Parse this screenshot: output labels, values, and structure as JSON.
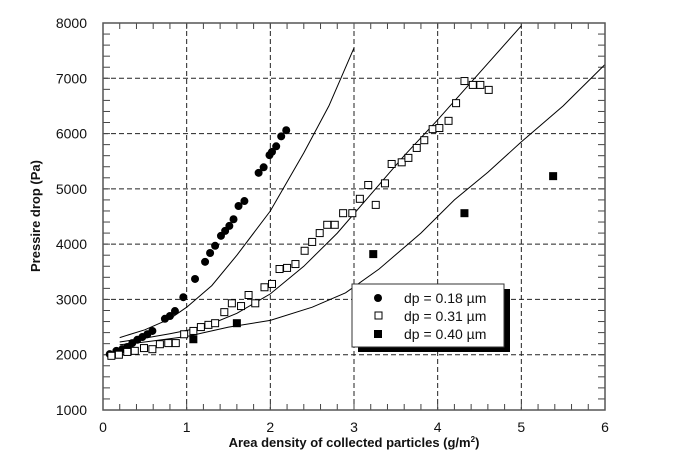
{
  "chart_data": {
    "type": "scatter",
    "title": "",
    "xlabel": "Area density of collected particles  (g/m",
    "xlabel_sup": "2",
    "xlabel_end": ")",
    "ylabel": "Pressire drop (Pa)",
    "xlim": [
      0,
      6
    ],
    "ylim": [
      1000,
      8000
    ],
    "x_ticks": [
      "0",
      "1",
      "2",
      "3",
      "4",
      "5",
      "6"
    ],
    "y_ticks": [
      "1000",
      "2000",
      "3000",
      "4000",
      "5000",
      "6000",
      "7000",
      "8000"
    ],
    "grid": true,
    "legend_position": "lower-right",
    "series": [
      {
        "name": "dp = 0.18 µm",
        "marker": "filled-circle",
        "points": [
          [
            0.08,
            2010
          ],
          [
            0.16,
            2070
          ],
          [
            0.23,
            2100
          ],
          [
            0.29,
            2140
          ],
          [
            0.35,
            2210
          ],
          [
            0.41,
            2270
          ],
          [
            0.47,
            2320
          ],
          [
            0.53,
            2370
          ],
          [
            0.59,
            2430
          ],
          [
            0.74,
            2650
          ],
          [
            0.8,
            2700
          ],
          [
            0.86,
            2790
          ],
          [
            0.96,
            3040
          ],
          [
            1.1,
            3370
          ],
          [
            1.22,
            3680
          ],
          [
            1.28,
            3840
          ],
          [
            1.34,
            3970
          ],
          [
            1.41,
            4150
          ],
          [
            1.46,
            4240
          ],
          [
            1.51,
            4330
          ],
          [
            1.56,
            4450
          ],
          [
            1.62,
            4690
          ],
          [
            1.69,
            4780
          ],
          [
            1.86,
            5290
          ],
          [
            1.92,
            5390
          ],
          [
            1.99,
            5610
          ],
          [
            2.02,
            5670
          ],
          [
            2.07,
            5770
          ],
          [
            2.13,
            5950
          ],
          [
            2.19,
            6060
          ]
        ],
        "model_curve": [
          [
            0.2,
            2310
          ],
          [
            0.5,
            2450
          ],
          [
            0.8,
            2650
          ],
          [
            1.0,
            2860
          ],
          [
            1.3,
            3250
          ],
          [
            1.6,
            3800
          ],
          [
            2.0,
            4600
          ],
          [
            2.4,
            5650
          ],
          [
            2.7,
            6500
          ],
          [
            3.0,
            7550
          ]
        ]
      },
      {
        "name": "dp = 0.31 µm",
        "marker": "open-square",
        "points": [
          [
            0.1,
            1980
          ],
          [
            0.19,
            2000
          ],
          [
            0.29,
            2050
          ],
          [
            0.38,
            2070
          ],
          [
            0.49,
            2120
          ],
          [
            0.59,
            2100
          ],
          [
            0.68,
            2190
          ],
          [
            0.78,
            2210
          ],
          [
            0.87,
            2210
          ],
          [
            0.97,
            2370
          ],
          [
            1.08,
            2430
          ],
          [
            1.17,
            2500
          ],
          [
            1.26,
            2540
          ],
          [
            1.34,
            2570
          ],
          [
            1.45,
            2770
          ],
          [
            1.54,
            2930
          ],
          [
            1.65,
            2880
          ],
          [
            1.74,
            3080
          ],
          [
            1.82,
            2930
          ],
          [
            1.93,
            3220
          ],
          [
            2.02,
            3280
          ],
          [
            2.11,
            3550
          ],
          [
            2.2,
            3570
          ],
          [
            2.3,
            3640
          ],
          [
            2.41,
            3880
          ],
          [
            2.5,
            4040
          ],
          [
            2.59,
            4200
          ],
          [
            2.68,
            4350
          ],
          [
            2.77,
            4350
          ],
          [
            2.87,
            4560
          ],
          [
            2.98,
            4560
          ],
          [
            3.07,
            4820
          ],
          [
            3.17,
            5070
          ],
          [
            3.26,
            4710
          ],
          [
            3.37,
            5100
          ],
          [
            3.45,
            5450
          ],
          [
            3.57,
            5480
          ],
          [
            3.65,
            5560
          ],
          [
            3.75,
            5740
          ],
          [
            3.84,
            5880
          ],
          [
            3.94,
            6080
          ],
          [
            4.02,
            6100
          ],
          [
            4.13,
            6230
          ],
          [
            4.22,
            6550
          ],
          [
            4.32,
            6950
          ],
          [
            4.42,
            6880
          ],
          [
            4.51,
            6880
          ],
          [
            4.61,
            6790
          ]
        ],
        "model_curve": [
          [
            0.2,
            2230
          ],
          [
            0.5,
            2300
          ],
          [
            0.8,
            2380
          ],
          [
            1.2,
            2500
          ],
          [
            1.6,
            2750
          ],
          [
            2.0,
            3100
          ],
          [
            2.4,
            3600
          ],
          [
            2.8,
            4200
          ],
          [
            3.2,
            4900
          ],
          [
            3.6,
            5600
          ],
          [
            4.0,
            6250
          ],
          [
            4.5,
            7100
          ],
          [
            5.0,
            7950
          ]
        ]
      },
      {
        "name": "dp = 0.40 µm",
        "marker": "filled-square",
        "points": [
          [
            1.08,
            2280
          ],
          [
            1.6,
            2570
          ],
          [
            3.23,
            3820
          ],
          [
            4.32,
            4560
          ],
          [
            5.38,
            5230
          ]
        ],
        "model_curve": [
          [
            0.2,
            2180
          ],
          [
            0.5,
            2230
          ],
          [
            1.0,
            2330
          ],
          [
            1.5,
            2500
          ],
          [
            2.0,
            2620
          ],
          [
            2.5,
            2860
          ],
          [
            2.9,
            3120
          ],
          [
            3.3,
            3550
          ],
          [
            3.8,
            4200
          ],
          [
            4.2,
            4800
          ],
          [
            4.6,
            5300
          ],
          [
            5.0,
            5850
          ],
          [
            5.5,
            6500
          ],
          [
            6.0,
            7250
          ]
        ]
      }
    ]
  }
}
